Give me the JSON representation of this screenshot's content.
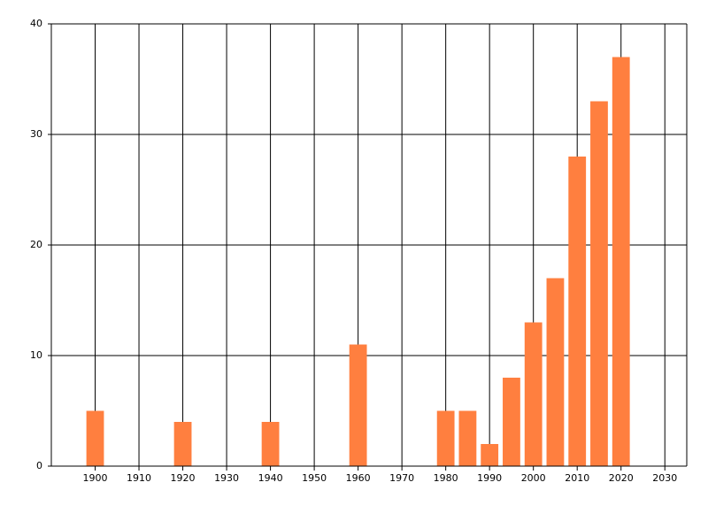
{
  "chart_data": {
    "type": "bar",
    "x": [
      1900,
      1920,
      1940,
      1960,
      1980,
      1985,
      1990,
      1995,
      2000,
      2005,
      2010,
      2015,
      2020
    ],
    "values": [
      5,
      4,
      4,
      11,
      5,
      5,
      2,
      8,
      13,
      17,
      28,
      33,
      37
    ],
    "color": "#ff7f3f",
    "xlim": [
      1890,
      2035
    ],
    "xticks": [
      1900,
      1910,
      1920,
      1930,
      1940,
      1950,
      1960,
      1970,
      1980,
      1990,
      2000,
      2010,
      2020,
      2030
    ],
    "ylim": [
      0,
      40
    ],
    "yticks": [
      0,
      10,
      20,
      30,
      40
    ],
    "grid": true
  }
}
